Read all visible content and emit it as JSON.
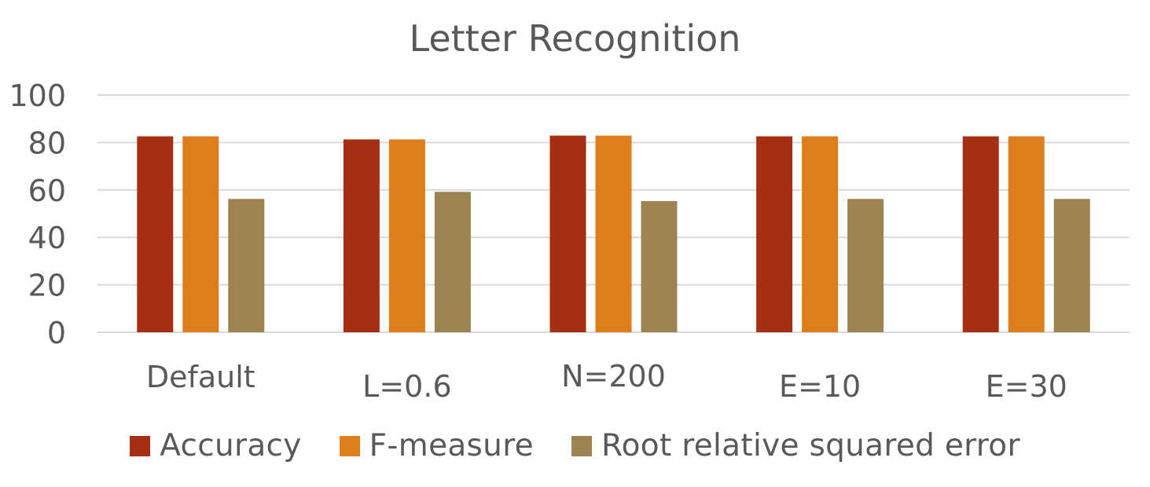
{
  "chart_data": {
    "type": "bar",
    "title": "Letter Recognition",
    "xlabel": "",
    "ylabel": "",
    "categories": [
      "Default",
      "L=0.6",
      "N=200",
      "E=10",
      "E=30"
    ],
    "series": [
      {
        "name": "Accuracy",
        "color": "#A52F12",
        "values": [
          82.6,
          81.3,
          82.9,
          82.6,
          82.6
        ]
      },
      {
        "name": "F-measure",
        "color": "#DE7D1C",
        "values": [
          82.6,
          81.3,
          82.9,
          82.6,
          82.6
        ]
      },
      {
        "name": "Root relative squared error",
        "color": "#9E8352",
        "values": [
          56.2,
          59.2,
          55.3,
          56.2,
          56.2
        ]
      }
    ],
    "ylim": [
      0,
      100
    ],
    "yticks": [
      "0",
      "20",
      "40",
      "60",
      "80",
      "100"
    ],
    "grid": true,
    "legend_position": "bottom",
    "colors": {
      "gridline": "#D9D9D9",
      "text": "#595959"
    }
  }
}
